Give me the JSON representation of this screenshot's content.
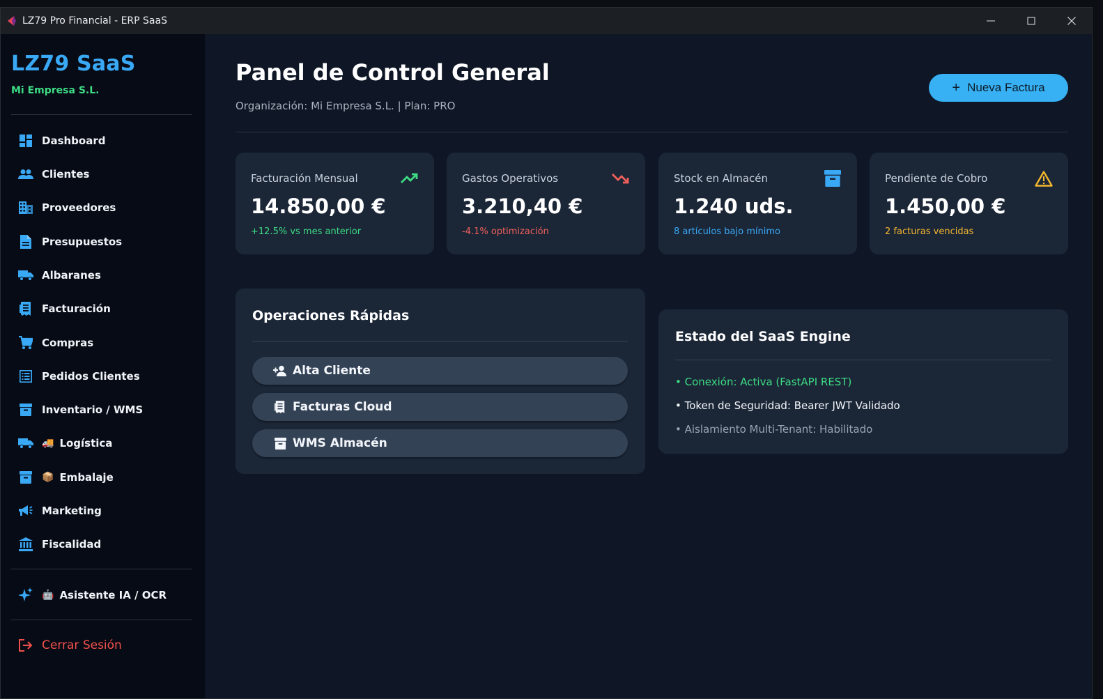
{
  "window": {
    "title": "LZ79 Pro Financial - ERP SaaS"
  },
  "sidebar": {
    "brand": "LZ79 SaaS",
    "org": "Mi Empresa S.L.",
    "items": [
      {
        "label": "Dashboard",
        "icon": "dashboard-icon"
      },
      {
        "label": "Clientes",
        "icon": "people-icon"
      },
      {
        "label": "Proveedores",
        "icon": "building-icon"
      },
      {
        "label": "Presupuestos",
        "icon": "document-icon"
      },
      {
        "label": "Albaranes",
        "icon": "truck-icon"
      },
      {
        "label": "Facturación",
        "icon": "receipt-icon"
      },
      {
        "label": "Compras",
        "icon": "cart-icon"
      },
      {
        "label": "Pedidos Clientes",
        "icon": "list-icon"
      },
      {
        "label": "Inventario / WMS",
        "icon": "archive-icon"
      },
      {
        "label": "Logística",
        "icon": "truck-icon",
        "emoji": "🚚"
      },
      {
        "label": "Embalaje",
        "icon": "archive-icon",
        "emoji": "📦"
      },
      {
        "label": "Marketing",
        "icon": "megaphone-icon"
      },
      {
        "label": "Fiscalidad",
        "icon": "bank-icon"
      }
    ],
    "assistant": {
      "label": "Asistente IA / OCR",
      "icon": "sparkle-icon",
      "emoji": "🤖"
    },
    "logout": {
      "label": "Cerrar Sesión",
      "icon": "logout-icon"
    }
  },
  "header": {
    "title": "Panel de Control General",
    "subtitle": "Organización: Mi Empresa S.L. | Plan: PRO",
    "new_invoice_label": "Nueva Factura"
  },
  "kpis": [
    {
      "title": "Facturación Mensual",
      "value": "14.850,00 €",
      "note": "+12.5% vs mes anterior",
      "note_color": "#3ddc84",
      "icon": "trending-up-icon",
      "icon_color": "#3ddc84"
    },
    {
      "title": "Gastos Operativos",
      "value": "3.210,40 €",
      "note": "-4.1% optimización",
      "note_color": "#f0605a",
      "icon": "trending-down-icon",
      "icon_color": "#f0605a"
    },
    {
      "title": "Stock en Almacén",
      "value": "1.240 uds.",
      "note": "8 artículos bajo mínimo",
      "note_color": "#3aa9f5",
      "icon": "archive-icon",
      "icon_color": "#3aa9f5"
    },
    {
      "title": "Pendiente de Cobro",
      "value": "1.450,00 €",
      "note": "2 facturas vencidas",
      "note_color": "#f5b82e",
      "icon": "warning-icon",
      "icon_color": "#f5b82e"
    }
  ],
  "quick_ops": {
    "title": "Operaciones Rápidas",
    "buttons": [
      {
        "label": "Alta Cliente",
        "icon": "person-add-icon"
      },
      {
        "label": "Facturas Cloud",
        "icon": "receipt-icon"
      },
      {
        "label": "WMS Almacén",
        "icon": "archive-icon"
      }
    ]
  },
  "engine": {
    "title": "Estado del SaaS Engine",
    "lines": [
      {
        "text": "• Conexión: Activa (FastAPI REST)",
        "color": "#3ddc84"
      },
      {
        "text": "• Token de Seguridad: Bearer JWT Validado",
        "color": "#f3f6fa"
      },
      {
        "text": "• Aislamiento Multi-Tenant: Habilitado",
        "color": "#9aa5b3"
      }
    ]
  },
  "colors": {
    "accent": "#37b1f4",
    "sidebar_bg": "#070b16",
    "main_bg": "#0f1726",
    "card_bg": "#1b2637"
  }
}
